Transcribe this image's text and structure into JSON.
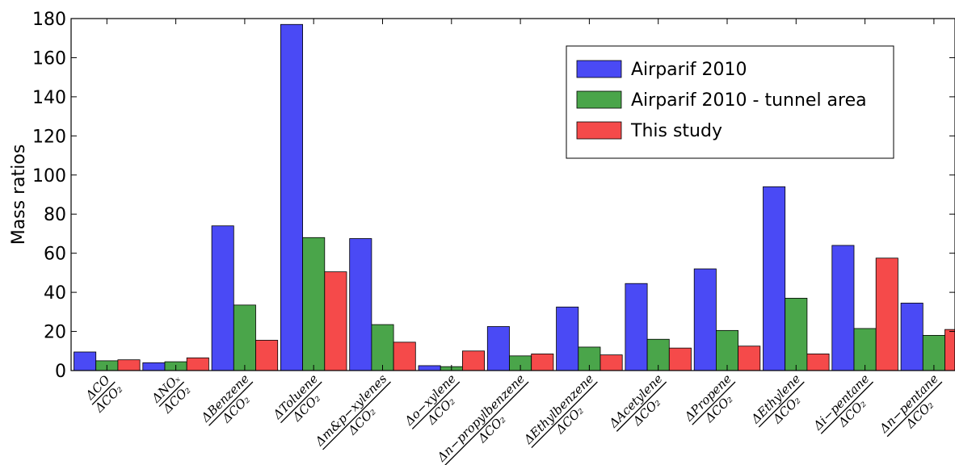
{
  "chart_data": {
    "type": "bar",
    "ylabel": "Mass ratios",
    "xlabel": "",
    "title": "",
    "ylim": [
      0,
      180
    ],
    "yticks": [
      0,
      20,
      40,
      60,
      80,
      100,
      120,
      140,
      160,
      180
    ],
    "grid": false,
    "legend_position": "top-right",
    "categories": [
      {
        "num": "ΔCO",
        "den": "ΔCO₂"
      },
      {
        "num": "ΔNOₓ",
        "den": "ΔCO₂"
      },
      {
        "num": "ΔBenzene",
        "den": "ΔCO₂"
      },
      {
        "num": "ΔToluene",
        "den": "ΔCO₂"
      },
      {
        "num": "Δm&p−xylenes",
        "den": "ΔCO₂"
      },
      {
        "num": "Δo−xylene",
        "den": "ΔCO₂"
      },
      {
        "num": "Δn−propylbenzene",
        "den": "ΔCO₂"
      },
      {
        "num": "ΔEthylbenzene",
        "den": "ΔCO₂"
      },
      {
        "num": "ΔAcetylene",
        "den": "ΔCO₂"
      },
      {
        "num": "ΔPropene",
        "den": "ΔCO₂"
      },
      {
        "num": "ΔEthylene",
        "den": "ΔCO₂"
      },
      {
        "num": "Δi−pentane",
        "den": "ΔCO₂"
      },
      {
        "num": "Δn−pentane",
        "den": "ΔCO₂"
      }
    ],
    "series": [
      {
        "name": "Airparif 2010",
        "color": "#4a4af5",
        "values": [
          9.5,
          4.0,
          74,
          177,
          67.5,
          2.5,
          22.5,
          32.5,
          44.5,
          52,
          94,
          64,
          34.5
        ]
      },
      {
        "name": "Airparif 2010 - tunnel area",
        "color": "#4aa54a",
        "values": [
          5.0,
          4.5,
          33.5,
          68,
          23.5,
          2.0,
          7.5,
          12,
          16,
          20.5,
          37,
          21.5,
          18
        ]
      },
      {
        "name": "This study",
        "color": "#f54a4a",
        "values": [
          5.5,
          6.5,
          15.5,
          50.5,
          14.5,
          10,
          8.5,
          8,
          11.5,
          12.5,
          8.5,
          57.5,
          21
        ]
      }
    ]
  }
}
